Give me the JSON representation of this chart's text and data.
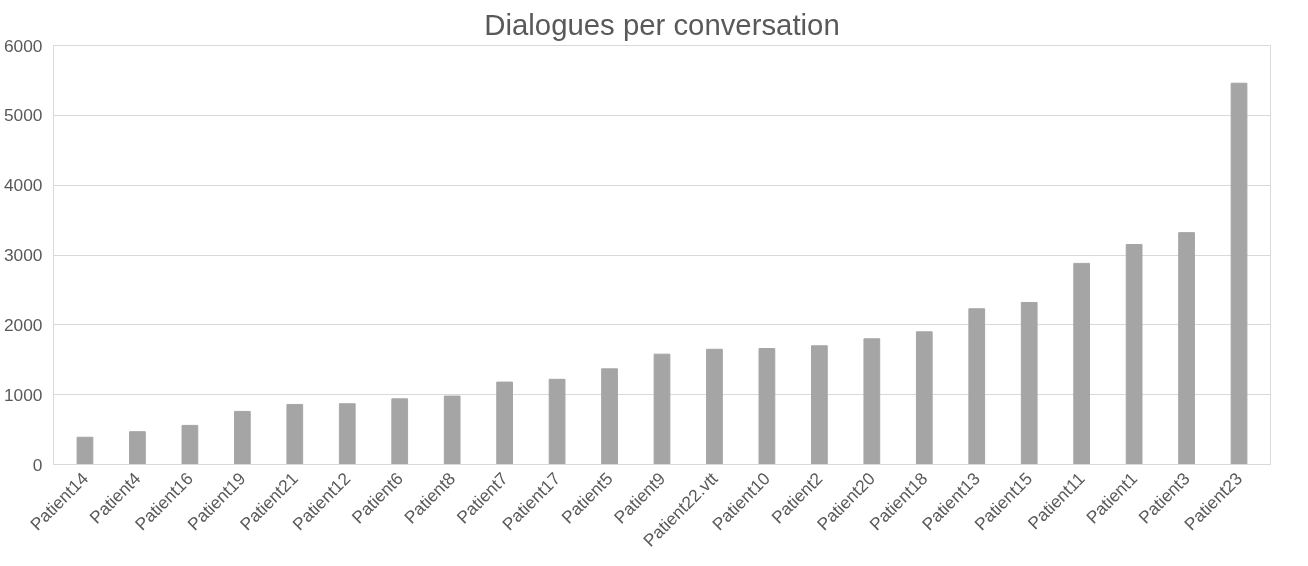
{
  "chart_data": {
    "type": "bar",
    "title": "Dialogues per conversation",
    "categories": [
      "Patient14",
      "Patient4",
      "Patient16",
      "Patient19",
      "Patient21",
      "Patient12",
      "Patient6",
      "Patient8",
      "Patient7",
      "Patient17",
      "Patient5",
      "Patient9",
      "Patient22.vtt",
      "Patient10",
      "Patient2",
      "Patient20",
      "Patient18",
      "Patient13",
      "Patient15",
      "Patient11",
      "Patient1",
      "Patient3",
      "Patient23"
    ],
    "values": [
      390,
      470,
      560,
      760,
      860,
      870,
      940,
      980,
      1180,
      1220,
      1370,
      1580,
      1650,
      1660,
      1700,
      1800,
      1900,
      2230,
      2320,
      2880,
      3150,
      3320,
      5460
    ],
    "color": "#a5a5a5",
    "ylim": [
      0,
      6000
    ],
    "yticks": [
      0,
      1000,
      2000,
      3000,
      4000,
      5000,
      6000
    ],
    "grid": "y"
  }
}
